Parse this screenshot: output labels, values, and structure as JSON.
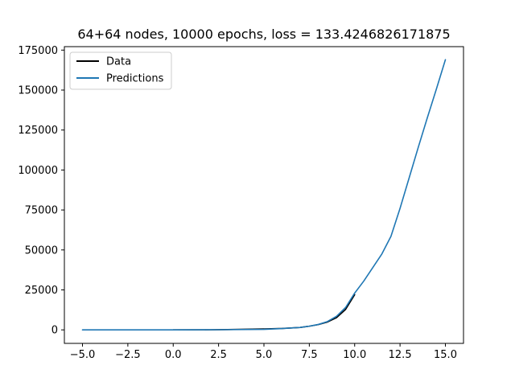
{
  "chart_data": {
    "type": "line",
    "title": "64+64 nodes, 10000 epochs, loss = 133.4246826171875",
    "xlabel": "",
    "ylabel": "",
    "xlim": [
      -5.0,
      15.0
    ],
    "ylim": [
      0,
      175000
    ],
    "x_ticks": [
      -5.0,
      -2.5,
      0.0,
      2.5,
      5.0,
      7.5,
      10.0,
      12.5,
      15.0
    ],
    "x_tick_labels": [
      "−5.0",
      "−2.5",
      "0.0",
      "2.5",
      "5.0",
      "7.5",
      "10.0",
      "12.5",
      "15.0"
    ],
    "y_ticks": [
      0,
      25000,
      50000,
      75000,
      100000,
      125000,
      150000,
      175000
    ],
    "y_tick_labels": [
      "0",
      "25000",
      "50000",
      "75000",
      "100000",
      "125000",
      "150000",
      "175000"
    ],
    "grid": false,
    "legend_position": "top-left",
    "series": [
      {
        "name": "Data",
        "color": "#000000",
        "x": [
          0,
          1,
          2,
          3,
          4,
          5,
          6,
          7,
          7.5,
          8,
          8.5,
          9,
          9.5,
          10
        ],
        "y": [
          0,
          3,
          40,
          200,
          400,
          600,
          900,
          1500,
          2300,
          3300,
          4900,
          7600,
          12800,
          22000
        ]
      },
      {
        "name": "Predictions",
        "color": "#1f77b4",
        "x": [
          -5,
          -2.5,
          0,
          2.5,
          5,
          6,
          7,
          7.5,
          8,
          8.5,
          9,
          9.5,
          10,
          10.5,
          11,
          11.5,
          12,
          12.5,
          13,
          13.5,
          14,
          14.5,
          15
        ],
        "y": [
          0,
          0,
          0,
          100,
          300,
          800,
          1500,
          2300,
          3400,
          5200,
          8500,
          14000,
          23000,
          30500,
          39000,
          47500,
          58500,
          76000,
          95000,
          114000,
          132500,
          150500,
          169000
        ]
      }
    ]
  }
}
